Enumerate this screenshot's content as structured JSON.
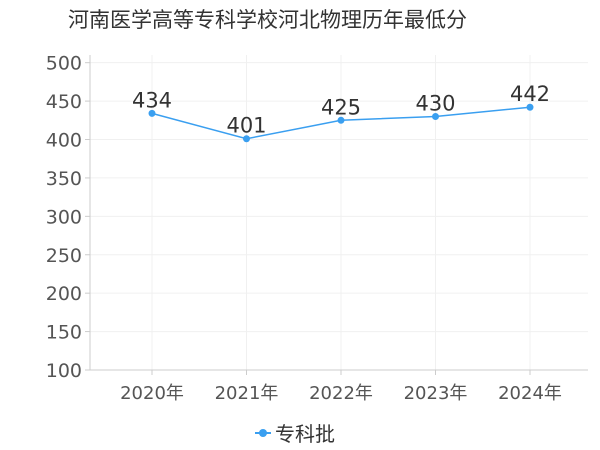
{
  "chart_data": {
    "type": "line",
    "title": "河南医学高等专科学校河北物理历年最低分",
    "categories": [
      "2020年",
      "2021年",
      "2022年",
      "2023年",
      "2024年"
    ],
    "series": [
      {
        "name": "专科批",
        "values": [
          434,
          401,
          425,
          430,
          442
        ]
      }
    ],
    "data_labels": [
      "434",
      "401",
      "425",
      "430",
      "442"
    ],
    "y_ticks": [
      "100",
      "150",
      "200",
      "250",
      "300",
      "350",
      "400",
      "450",
      "500"
    ],
    "ylim": [
      100,
      510
    ],
    "grid": true,
    "legend_position": "bottom",
    "colors": {
      "series": "#3a9ff0",
      "grid": "#f0f0f0",
      "axis": "#cccccc"
    }
  }
}
